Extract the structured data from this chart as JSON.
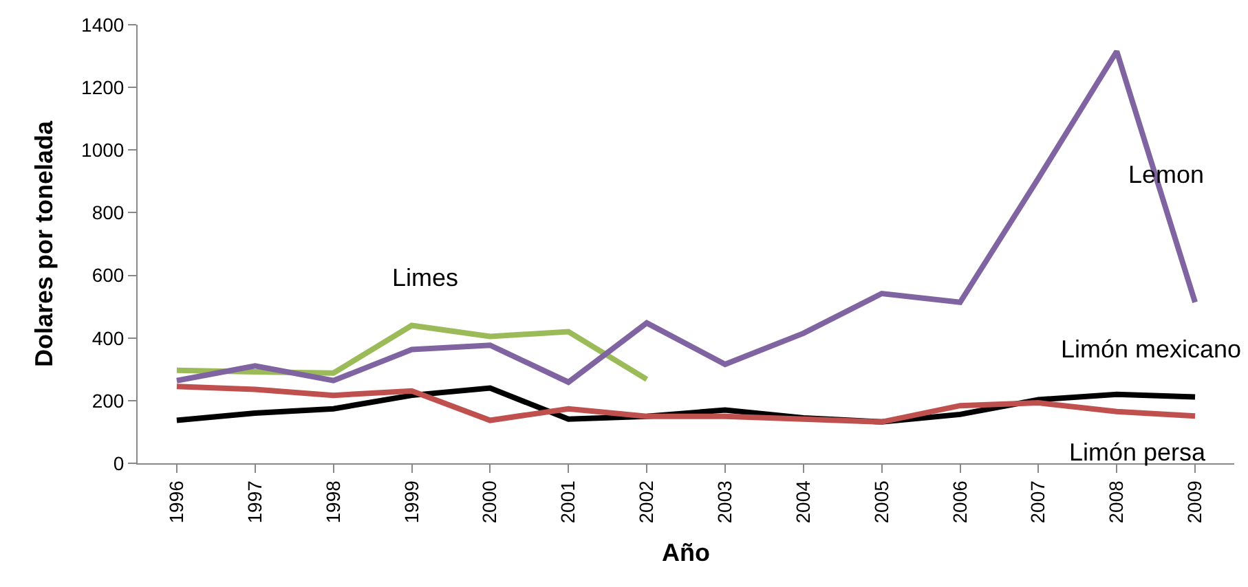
{
  "chart_data": {
    "type": "line",
    "xlabel": "Año",
    "ylabel": "Dolares por tonelada",
    "categories": [
      "1996",
      "1997",
      "1998",
      "1999",
      "2000",
      "2001",
      "2002",
      "2003",
      "2004",
      "2005",
      "2006",
      "2007",
      "2008",
      "2009"
    ],
    "series": [
      {
        "name": "Limes",
        "color": "#9bbb59",
        "values": [
          297,
          292,
          288,
          440,
          405,
          420,
          268,
          null,
          null,
          null,
          null,
          null,
          null,
          null
        ]
      },
      {
        "name": "Lemon",
        "color": "#8064a2",
        "values": [
          264,
          311,
          264,
          363,
          377,
          259,
          448,
          316,
          415,
          542,
          514,
          910,
          1315,
          514
        ]
      },
      {
        "name": "Limón mexicano",
        "color": "#000000",
        "values": [
          137,
          160,
          174,
          217,
          240,
          141,
          150,
          170,
          145,
          132,
          156,
          203,
          220,
          212
        ]
      },
      {
        "name": "Limón persa",
        "color": "#c0504d",
        "values": [
          245,
          236,
          217,
          231,
          137,
          174,
          150,
          150,
          141,
          132,
          184,
          193,
          165,
          151
        ]
      }
    ],
    "ylim": [
      0,
      1400
    ],
    "yticks": [
      0,
      200,
      400,
      600,
      800,
      1000,
      1200,
      1400
    ],
    "grid": false,
    "marker": "none",
    "line_style": "solid"
  }
}
